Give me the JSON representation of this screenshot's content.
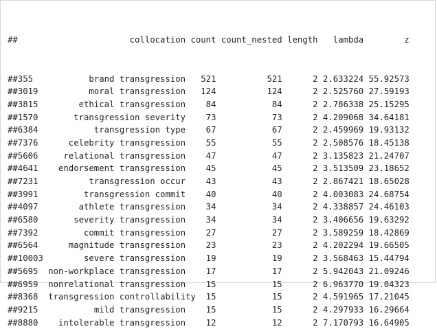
{
  "output": {
    "prefix": "##",
    "columns": [
      "collocation",
      "count",
      "count_nested",
      "length",
      "lambda",
      "z"
    ],
    "rows": [
      {
        "id": "355",
        "collocation": "brand transgression",
        "count": "521",
        "count_nested": "521",
        "length": "2",
        "lambda": "2.633224",
        "z": "55.92573"
      },
      {
        "id": "3019",
        "collocation": "moral transgression",
        "count": "124",
        "count_nested": "124",
        "length": "2",
        "lambda": "2.525760",
        "z": "27.59193"
      },
      {
        "id": "3815",
        "collocation": "ethical transgression",
        "count": "84",
        "count_nested": "84",
        "length": "2",
        "lambda": "2.786338",
        "z": "25.15295"
      },
      {
        "id": "1570",
        "collocation": "transgression severity",
        "count": "73",
        "count_nested": "73",
        "length": "2",
        "lambda": "4.209068",
        "z": "34.64181"
      },
      {
        "id": "6384",
        "collocation": "transgression type",
        "count": "67",
        "count_nested": "67",
        "length": "2",
        "lambda": "2.459969",
        "z": "19.93132"
      },
      {
        "id": "7376",
        "collocation": "celebrity transgression",
        "count": "55",
        "count_nested": "55",
        "length": "2",
        "lambda": "2.508576",
        "z": "18.45138"
      },
      {
        "id": "5606",
        "collocation": "relational transgression",
        "count": "47",
        "count_nested": "47",
        "length": "2",
        "lambda": "3.135823",
        "z": "21.24707"
      },
      {
        "id": "4641",
        "collocation": "endorsement transgression",
        "count": "45",
        "count_nested": "45",
        "length": "2",
        "lambda": "3.513509",
        "z": "23.18652"
      },
      {
        "id": "7231",
        "collocation": "transgression occur",
        "count": "43",
        "count_nested": "43",
        "length": "2",
        "lambda": "2.867421",
        "z": "18.65028"
      },
      {
        "id": "3991",
        "collocation": "transgression commit",
        "count": "40",
        "count_nested": "40",
        "length": "2",
        "lambda": "4.003083",
        "z": "24.68754"
      },
      {
        "id": "4097",
        "collocation": "athlete transgression",
        "count": "34",
        "count_nested": "34",
        "length": "2",
        "lambda": "4.338857",
        "z": "24.46103"
      },
      {
        "id": "6580",
        "collocation": "severity transgression",
        "count": "34",
        "count_nested": "34",
        "length": "2",
        "lambda": "3.406656",
        "z": "19.63292"
      },
      {
        "id": "7392",
        "collocation": "commit transgression",
        "count": "27",
        "count_nested": "27",
        "length": "2",
        "lambda": "3.589259",
        "z": "18.42869"
      },
      {
        "id": "6564",
        "collocation": "magnitude transgression",
        "count": "23",
        "count_nested": "23",
        "length": "2",
        "lambda": "4.202294",
        "z": "19.66505"
      },
      {
        "id": "10003",
        "collocation": "severe transgression",
        "count": "19",
        "count_nested": "19",
        "length": "2",
        "lambda": "3.568463",
        "z": "15.44794"
      },
      {
        "id": "5695",
        "collocation": "non-workplace transgression",
        "count": "17",
        "count_nested": "17",
        "length": "2",
        "lambda": "5.942043",
        "z": "21.09246"
      },
      {
        "id": "6959",
        "collocation": "nonrelational transgression",
        "count": "15",
        "count_nested": "15",
        "length": "2",
        "lambda": "6.963770",
        "z": "19.04323"
      },
      {
        "id": "8368",
        "collocation": "transgression controllability",
        "count": "15",
        "count_nested": "15",
        "length": "2",
        "lambda": "4.591965",
        "z": "17.21045"
      },
      {
        "id": "9215",
        "collocation": "mild transgression",
        "count": "15",
        "count_nested": "15",
        "length": "2",
        "lambda": "4.297933",
        "z": "16.29664"
      },
      {
        "id": "8880",
        "collocation": "intolerable transgression",
        "count": "12",
        "count_nested": "12",
        "length": "2",
        "lambda": "7.170793",
        "z": "16.64905"
      }
    ]
  }
}
